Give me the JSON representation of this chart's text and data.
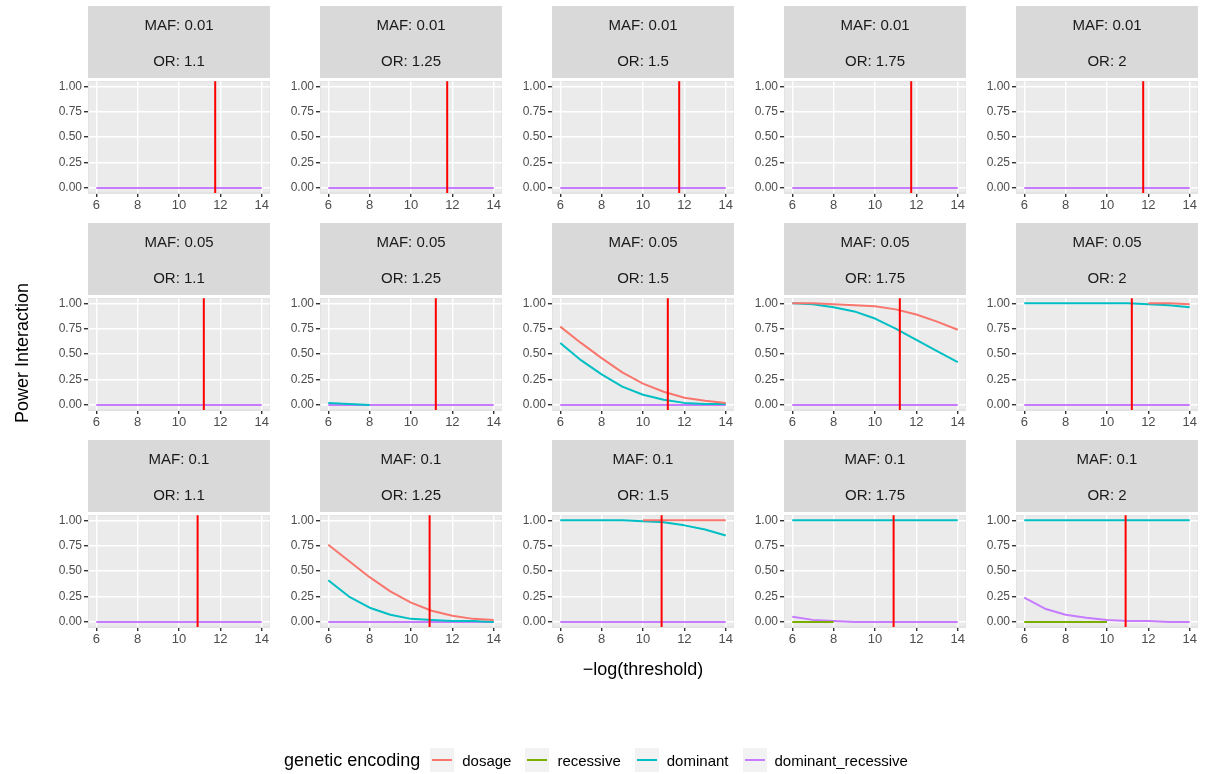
{
  "chart_data": [
    {
      "type": "line",
      "title": "MAF: 0.01",
      "subtitle": "OR: 1.1",
      "x": [
        6,
        7,
        8,
        9,
        10,
        11,
        12,
        13,
        14
      ],
      "xlim": [
        5.6,
        14.4
      ],
      "ylim": [
        -0.05,
        1.05
      ],
      "xticks": [
        6,
        8,
        10,
        12,
        14
      ],
      "yticks": [
        {
          "value": 0,
          "label": "0.00"
        },
        {
          "value": 0.25,
          "label": "0.25"
        },
        {
          "value": 0.5,
          "label": "0.50"
        },
        {
          "value": 0.75,
          "label": "0.75"
        },
        {
          "value": 1,
          "label": "1.00"
        }
      ],
      "grid": true,
      "ref_lines": [
        {
          "axis": "x",
          "value": 11.75,
          "color": "#ff0000"
        }
      ],
      "series": [
        {
          "color": "#f8766d",
          "values": [
            null,
            null,
            null,
            null,
            null,
            null,
            null,
            null,
            null
          ]
        },
        {
          "color": "#7cae00",
          "values": [
            null,
            null,
            null,
            null,
            null,
            null,
            null,
            null,
            null
          ]
        },
        {
          "color": "#00bfc4",
          "values": [
            null,
            null,
            null,
            null,
            null,
            null,
            null,
            null,
            null
          ]
        },
        {
          "color": "#c77cff",
          "values": [
            0,
            0,
            0,
            0,
            0,
            0,
            0,
            0,
            0
          ]
        }
      ]
    },
    {
      "type": "line",
      "title": "MAF: 0.01",
      "subtitle": "OR: 1.25",
      "x": [
        6,
        7,
        8,
        9,
        10,
        11,
        12,
        13,
        14
      ],
      "xlim": [
        5.6,
        14.4
      ],
      "ylim": [
        -0.05,
        1.05
      ],
      "xticks": [
        6,
        8,
        10,
        12,
        14
      ],
      "yticks": [
        {
          "value": 0,
          "label": "0.00"
        },
        {
          "value": 0.25,
          "label": "0.25"
        },
        {
          "value": 0.5,
          "label": "0.50"
        },
        {
          "value": 0.75,
          "label": "0.75"
        },
        {
          "value": 1,
          "label": "1.00"
        }
      ],
      "grid": true,
      "ref_lines": [
        {
          "axis": "x",
          "value": 11.75,
          "color": "#ff0000"
        }
      ],
      "series": [
        {
          "color": "#f8766d",
          "values": [
            null,
            null,
            null,
            null,
            null,
            null,
            null,
            null,
            null
          ]
        },
        {
          "color": "#7cae00",
          "values": [
            null,
            null,
            null,
            null,
            null,
            null,
            null,
            null,
            null
          ]
        },
        {
          "color": "#00bfc4",
          "values": [
            null,
            null,
            null,
            null,
            null,
            null,
            null,
            null,
            null
          ]
        },
        {
          "color": "#c77cff",
          "values": [
            0,
            0,
            0,
            0,
            0,
            0,
            0,
            0,
            0
          ]
        }
      ]
    },
    {
      "type": "line",
      "title": "MAF: 0.01",
      "subtitle": "OR: 1.5",
      "x": [
        6,
        7,
        8,
        9,
        10,
        11,
        12,
        13,
        14
      ],
      "xlim": [
        5.6,
        14.4
      ],
      "ylim": [
        -0.05,
        1.05
      ],
      "xticks": [
        6,
        8,
        10,
        12,
        14
      ],
      "yticks": [
        {
          "value": 0,
          "label": "0.00"
        },
        {
          "value": 0.25,
          "label": "0.25"
        },
        {
          "value": 0.5,
          "label": "0.50"
        },
        {
          "value": 0.75,
          "label": "0.75"
        },
        {
          "value": 1,
          "label": "1.00"
        }
      ],
      "grid": true,
      "ref_lines": [
        {
          "axis": "x",
          "value": 11.75,
          "color": "#ff0000"
        }
      ],
      "series": [
        {
          "color": "#f8766d",
          "values": [
            null,
            null,
            null,
            null,
            null,
            null,
            null,
            null,
            null
          ]
        },
        {
          "color": "#7cae00",
          "values": [
            null,
            null,
            null,
            null,
            null,
            null,
            null,
            null,
            null
          ]
        },
        {
          "color": "#00bfc4",
          "values": [
            null,
            null,
            null,
            null,
            null,
            null,
            null,
            null,
            null
          ]
        },
        {
          "color": "#c77cff",
          "values": [
            0,
            0,
            0,
            0,
            0,
            0,
            0,
            0,
            0
          ]
        }
      ]
    },
    {
      "type": "line",
      "title": "MAF: 0.01",
      "subtitle": "OR: 1.75",
      "x": [
        6,
        7,
        8,
        9,
        10,
        11,
        12,
        13,
        14
      ],
      "xlim": [
        5.6,
        14.4
      ],
      "ylim": [
        -0.05,
        1.05
      ],
      "xticks": [
        6,
        8,
        10,
        12,
        14
      ],
      "yticks": [
        {
          "value": 0,
          "label": "0.00"
        },
        {
          "value": 0.25,
          "label": "0.25"
        },
        {
          "value": 0.5,
          "label": "0.50"
        },
        {
          "value": 0.75,
          "label": "0.75"
        },
        {
          "value": 1,
          "label": "1.00"
        }
      ],
      "grid": true,
      "ref_lines": [
        {
          "axis": "x",
          "value": 11.75,
          "color": "#ff0000"
        }
      ],
      "series": [
        {
          "color": "#f8766d",
          "values": [
            null,
            null,
            null,
            null,
            null,
            null,
            null,
            null,
            null
          ]
        },
        {
          "color": "#7cae00",
          "values": [
            null,
            null,
            null,
            null,
            null,
            null,
            null,
            null,
            null
          ]
        },
        {
          "color": "#00bfc4",
          "values": [
            null,
            null,
            null,
            null,
            null,
            null,
            null,
            null,
            null
          ]
        },
        {
          "color": "#c77cff",
          "values": [
            0,
            0,
            0,
            0,
            0,
            0,
            0,
            0,
            0
          ]
        }
      ]
    },
    {
      "type": "line",
      "title": "MAF: 0.01",
      "subtitle": "OR: 2",
      "x": [
        6,
        7,
        8,
        9,
        10,
        11,
        12,
        13,
        14
      ],
      "xlim": [
        5.6,
        14.4
      ],
      "ylim": [
        -0.05,
        1.05
      ],
      "xticks": [
        6,
        8,
        10,
        12,
        14
      ],
      "yticks": [
        {
          "value": 0,
          "label": "0.00"
        },
        {
          "value": 0.25,
          "label": "0.25"
        },
        {
          "value": 0.5,
          "label": "0.50"
        },
        {
          "value": 0.75,
          "label": "0.75"
        },
        {
          "value": 1,
          "label": "1.00"
        }
      ],
      "grid": true,
      "ref_lines": [
        {
          "axis": "x",
          "value": 11.75,
          "color": "#ff0000"
        }
      ],
      "series": [
        {
          "color": "#f8766d",
          "values": [
            null,
            null,
            null,
            null,
            null,
            null,
            null,
            null,
            null
          ]
        },
        {
          "color": "#7cae00",
          "values": [
            null,
            null,
            null,
            null,
            null,
            null,
            null,
            null,
            null
          ]
        },
        {
          "color": "#00bfc4",
          "values": [
            null,
            null,
            null,
            null,
            null,
            null,
            null,
            null,
            null
          ]
        },
        {
          "color": "#c77cff",
          "values": [
            0,
            0,
            0,
            0,
            0,
            0,
            0,
            0,
            0
          ]
        }
      ]
    },
    {
      "type": "line",
      "title": "MAF: 0.05",
      "subtitle": "OR: 1.1",
      "ylabel": "Power Interaction",
      "x": [
        6,
        7,
        8,
        9,
        10,
        11,
        12,
        13,
        14
      ],
      "xlim": [
        5.6,
        14.4
      ],
      "ylim": [
        -0.05,
        1.05
      ],
      "xticks": [
        6,
        8,
        10,
        12,
        14
      ],
      "yticks": [
        {
          "value": 0,
          "label": "0.00"
        },
        {
          "value": 0.25,
          "label": "0.25"
        },
        {
          "value": 0.5,
          "label": "0.50"
        },
        {
          "value": 0.75,
          "label": "0.75"
        },
        {
          "value": 1,
          "label": "1.00"
        }
      ],
      "grid": true,
      "ref_lines": [
        {
          "axis": "x",
          "value": 11.2,
          "color": "#ff0000"
        }
      ],
      "series": [
        {
          "color": "#f8766d",
          "values": [
            null,
            null,
            null,
            null,
            null,
            null,
            null,
            null,
            null
          ]
        },
        {
          "color": "#7cae00",
          "values": [
            null,
            null,
            null,
            null,
            null,
            null,
            null,
            null,
            null
          ]
        },
        {
          "color": "#00bfc4",
          "values": [
            null,
            null,
            null,
            null,
            null,
            null,
            null,
            null,
            null
          ]
        },
        {
          "color": "#c77cff",
          "values": [
            0,
            0,
            0,
            0,
            0,
            0,
            0,
            0,
            0
          ]
        }
      ]
    },
    {
      "type": "line",
      "title": "MAF: 0.05",
      "subtitle": "OR: 1.25",
      "x": [
        6,
        7,
        8,
        9,
        10,
        11,
        12,
        13,
        14
      ],
      "xlim": [
        5.6,
        14.4
      ],
      "ylim": [
        -0.05,
        1.05
      ],
      "xticks": [
        6,
        8,
        10,
        12,
        14
      ],
      "yticks": [
        {
          "value": 0,
          "label": "0.00"
        },
        {
          "value": 0.25,
          "label": "0.25"
        },
        {
          "value": 0.5,
          "label": "0.50"
        },
        {
          "value": 0.75,
          "label": "0.75"
        },
        {
          "value": 1,
          "label": "1.00"
        }
      ],
      "grid": true,
      "ref_lines": [
        {
          "axis": "x",
          "value": 11.2,
          "color": "#ff0000"
        }
      ],
      "series": [
        {
          "color": "#f8766d",
          "values": [
            null,
            null,
            null,
            null,
            null,
            null,
            null,
            null,
            null
          ]
        },
        {
          "color": "#7cae00",
          "values": [
            null,
            null,
            null,
            null,
            null,
            null,
            null,
            null,
            null
          ]
        },
        {
          "color": "#00bfc4",
          "values": [
            0.02,
            0.01,
            0,
            null,
            null,
            null,
            null,
            null,
            null
          ]
        },
        {
          "color": "#c77cff",
          "values": [
            0,
            0,
            0,
            0,
            0,
            0,
            0,
            0,
            0
          ]
        }
      ]
    },
    {
      "type": "line",
      "title": "MAF: 0.05",
      "subtitle": "OR: 1.5",
      "x": [
        6,
        7,
        8,
        9,
        10,
        11,
        12,
        13,
        14
      ],
      "xlim": [
        5.6,
        14.4
      ],
      "ylim": [
        -0.05,
        1.05
      ],
      "xticks": [
        6,
        8,
        10,
        12,
        14
      ],
      "yticks": [
        {
          "value": 0,
          "label": "0.00"
        },
        {
          "value": 0.25,
          "label": "0.25"
        },
        {
          "value": 0.5,
          "label": "0.50"
        },
        {
          "value": 0.75,
          "label": "0.75"
        },
        {
          "value": 1,
          "label": "1.00"
        }
      ],
      "grid": true,
      "ref_lines": [
        {
          "axis": "x",
          "value": 11.2,
          "color": "#ff0000"
        }
      ],
      "series": [
        {
          "color": "#f8766d",
          "values": [
            0.77,
            0.61,
            0.46,
            0.32,
            0.21,
            0.13,
            0.07,
            0.04,
            0.02
          ]
        },
        {
          "color": "#7cae00",
          "values": [
            null,
            null,
            null,
            null,
            null,
            null,
            null,
            null,
            null
          ]
        },
        {
          "color": "#00bfc4",
          "values": [
            0.61,
            0.44,
            0.3,
            0.18,
            0.1,
            0.05,
            0.02,
            0.01,
            0.01
          ]
        },
        {
          "color": "#c77cff",
          "values": [
            0,
            0,
            0,
            0,
            0,
            0,
            0,
            0,
            0
          ]
        }
      ]
    },
    {
      "type": "line",
      "title": "MAF: 0.05",
      "subtitle": "OR: 1.75",
      "x": [
        6,
        7,
        8,
        9,
        10,
        11,
        12,
        13,
        14
      ],
      "xlim": [
        5.6,
        14.4
      ],
      "ylim": [
        -0.05,
        1.05
      ],
      "xticks": [
        6,
        8,
        10,
        12,
        14
      ],
      "yticks": [
        {
          "value": 0,
          "label": "0.00"
        },
        {
          "value": 0.25,
          "label": "0.25"
        },
        {
          "value": 0.5,
          "label": "0.50"
        },
        {
          "value": 0.75,
          "label": "0.75"
        },
        {
          "value": 1,
          "label": "1.00"
        }
      ],
      "grid": true,
      "ref_lines": [
        {
          "axis": "x",
          "value": 11.2,
          "color": "#ff0000"
        }
      ],
      "series": [
        {
          "color": "#f8766d",
          "values": [
            1,
            1,
            0.99,
            0.98,
            0.97,
            0.94,
            0.89,
            0.82,
            0.74
          ]
        },
        {
          "color": "#7cae00",
          "values": [
            null,
            null,
            null,
            null,
            null,
            null,
            null,
            null,
            null
          ]
        },
        {
          "color": "#00bfc4",
          "values": [
            1,
            0.99,
            0.96,
            0.92,
            0.85,
            0.75,
            0.64,
            0.53,
            0.42
          ]
        },
        {
          "color": "#c77cff",
          "values": [
            0,
            0,
            0,
            0,
            0,
            0,
            0,
            0,
            0
          ]
        }
      ]
    },
    {
      "type": "line",
      "title": "MAF: 0.05",
      "subtitle": "OR: 2",
      "x": [
        6,
        7,
        8,
        9,
        10,
        11,
        12,
        13,
        14
      ],
      "xlim": [
        5.6,
        14.4
      ],
      "ylim": [
        -0.05,
        1.05
      ],
      "xticks": [
        6,
        8,
        10,
        12,
        14
      ],
      "yticks": [
        {
          "value": 0,
          "label": "0.00"
        },
        {
          "value": 0.25,
          "label": "0.25"
        },
        {
          "value": 0.5,
          "label": "0.50"
        },
        {
          "value": 0.75,
          "label": "0.75"
        },
        {
          "value": 1,
          "label": "1.00"
        }
      ],
      "grid": true,
      "ref_lines": [
        {
          "axis": "x",
          "value": 11.2,
          "color": "#ff0000"
        }
      ],
      "series": [
        {
          "color": "#f8766d",
          "values": [
            null,
            null,
            null,
            null,
            null,
            null,
            1,
            1,
            0.99
          ]
        },
        {
          "color": "#7cae00",
          "values": [
            null,
            null,
            null,
            null,
            null,
            null,
            null,
            null,
            null
          ]
        },
        {
          "color": "#00bfc4",
          "values": [
            1,
            1,
            1,
            1,
            1,
            1,
            0.99,
            0.98,
            0.96
          ]
        },
        {
          "color": "#c77cff",
          "values": [
            0,
            0,
            0,
            0,
            0,
            0,
            0,
            0,
            0
          ]
        }
      ]
    },
    {
      "type": "line",
      "title": "MAF: 0.1",
      "subtitle": "OR: 1.1",
      "x": [
        6,
        7,
        8,
        9,
        10,
        11,
        12,
        13,
        14
      ],
      "xlim": [
        5.6,
        14.4
      ],
      "ylim": [
        -0.05,
        1.05
      ],
      "xticks": [
        6,
        8,
        10,
        12,
        14
      ],
      "yticks": [
        {
          "value": 0,
          "label": "0.00"
        },
        {
          "value": 0.25,
          "label": "0.25"
        },
        {
          "value": 0.5,
          "label": "0.50"
        },
        {
          "value": 0.75,
          "label": "0.75"
        },
        {
          "value": 1,
          "label": "1.00"
        }
      ],
      "grid": true,
      "ref_lines": [
        {
          "axis": "x",
          "value": 10.9,
          "color": "#ff0000"
        }
      ],
      "series": [
        {
          "color": "#f8766d",
          "values": [
            null,
            null,
            null,
            null,
            null,
            null,
            null,
            null,
            null
          ]
        },
        {
          "color": "#7cae00",
          "values": [
            null,
            null,
            null,
            null,
            null,
            null,
            null,
            null,
            null
          ]
        },
        {
          "color": "#00bfc4",
          "values": [
            null,
            null,
            null,
            null,
            null,
            null,
            null,
            null,
            null
          ]
        },
        {
          "color": "#c77cff",
          "values": [
            0,
            0,
            0,
            0,
            0,
            0,
            0,
            0,
            0
          ]
        }
      ]
    },
    {
      "type": "line",
      "title": "MAF: 0.1",
      "subtitle": "OR: 1.25",
      "x": [
        6,
        7,
        8,
        9,
        10,
        11,
        12,
        13,
        14
      ],
      "xlim": [
        5.6,
        14.4
      ],
      "ylim": [
        -0.05,
        1.05
      ],
      "xticks": [
        6,
        8,
        10,
        12,
        14
      ],
      "yticks": [
        {
          "value": 0,
          "label": "0.00"
        },
        {
          "value": 0.25,
          "label": "0.25"
        },
        {
          "value": 0.5,
          "label": "0.50"
        },
        {
          "value": 0.75,
          "label": "0.75"
        },
        {
          "value": 1,
          "label": "1.00"
        }
      ],
      "grid": true,
      "ref_lines": [
        {
          "axis": "x",
          "value": 10.9,
          "color": "#ff0000"
        }
      ],
      "series": [
        {
          "color": "#f8766d",
          "values": [
            0.76,
            0.6,
            0.44,
            0.3,
            0.19,
            0.11,
            0.06,
            0.03,
            0.02
          ]
        },
        {
          "color": "#7cae00",
          "values": [
            null,
            null,
            null,
            null,
            null,
            null,
            null,
            null,
            null
          ]
        },
        {
          "color": "#00bfc4",
          "values": [
            0.41,
            0.25,
            0.14,
            0.07,
            0.03,
            0.02,
            0.01,
            0.01,
            0
          ]
        },
        {
          "color": "#c77cff",
          "values": [
            0,
            0,
            0,
            0,
            0,
            0,
            0,
            0,
            0
          ]
        }
      ]
    },
    {
      "type": "line",
      "title": "MAF: 0.1",
      "subtitle": "OR: 1.5",
      "xlabel": "−log(threshold)",
      "legend": "bottom",
      "legend_title": "genetic encoding",
      "x": [
        6,
        7,
        8,
        9,
        10,
        11,
        12,
        13,
        14
      ],
      "xlim": [
        5.6,
        14.4
      ],
      "ylim": [
        -0.05,
        1.05
      ],
      "xticks": [
        6,
        8,
        10,
        12,
        14
      ],
      "yticks": [
        {
          "value": 0,
          "label": "0.00"
        },
        {
          "value": 0.25,
          "label": "0.25"
        },
        {
          "value": 0.5,
          "label": "0.50"
        },
        {
          "value": 0.75,
          "label": "0.75"
        },
        {
          "value": 1,
          "label": "1.00"
        }
      ],
      "grid": true,
      "ref_lines": [
        {
          "axis": "x",
          "value": 10.9,
          "color": "#ff0000"
        }
      ],
      "series": [
        {
          "name": "dosage",
          "color": "#f8766d",
          "values": [
            null,
            null,
            null,
            null,
            1,
            1,
            1,
            1,
            1
          ]
        },
        {
          "name": "recessive",
          "color": "#7cae00",
          "values": [
            null,
            null,
            null,
            null,
            null,
            null,
            null,
            null,
            null
          ]
        },
        {
          "name": "dominant",
          "color": "#00bfc4",
          "values": [
            1,
            1,
            1,
            1,
            0.99,
            0.98,
            0.95,
            0.91,
            0.85
          ]
        },
        {
          "name": "dominant_recessive",
          "color": "#c77cff",
          "values": [
            0,
            0,
            0,
            0,
            0,
            0,
            0,
            0,
            0
          ]
        }
      ]
    },
    {
      "type": "line",
      "title": "MAF: 0.1",
      "subtitle": "OR: 1.75",
      "x": [
        6,
        7,
        8,
        9,
        10,
        11,
        12,
        13,
        14
      ],
      "xlim": [
        5.6,
        14.4
      ],
      "ylim": [
        -0.05,
        1.05
      ],
      "xticks": [
        6,
        8,
        10,
        12,
        14
      ],
      "yticks": [
        {
          "value": 0,
          "label": "0.00"
        },
        {
          "value": 0.25,
          "label": "0.25"
        },
        {
          "value": 0.5,
          "label": "0.50"
        },
        {
          "value": 0.75,
          "label": "0.75"
        },
        {
          "value": 1,
          "label": "1.00"
        }
      ],
      "grid": true,
      "ref_lines": [
        {
          "axis": "x",
          "value": 10.9,
          "color": "#ff0000"
        }
      ],
      "series": [
        {
          "color": "#f8766d",
          "values": [
            null,
            null,
            null,
            null,
            null,
            null,
            null,
            null,
            null
          ]
        },
        {
          "color": "#7cae00",
          "values": [
            0,
            0,
            0,
            null,
            null,
            null,
            null,
            null,
            null
          ]
        },
        {
          "color": "#00bfc4",
          "values": [
            1,
            1,
            1,
            1,
            1,
            1,
            1,
            1,
            1
          ]
        },
        {
          "color": "#c77cff",
          "values": [
            0.05,
            0.02,
            0.01,
            0,
            0,
            0,
            0,
            0,
            0
          ]
        }
      ]
    },
    {
      "type": "line",
      "title": "MAF: 0.1",
      "subtitle": "OR: 2",
      "x": [
        6,
        7,
        8,
        9,
        10,
        11,
        12,
        13,
        14
      ],
      "xlim": [
        5.6,
        14.4
      ],
      "ylim": [
        -0.05,
        1.05
      ],
      "xticks": [
        6,
        8,
        10,
        12,
        14
      ],
      "yticks": [
        {
          "value": 0,
          "label": "0.00"
        },
        {
          "value": 0.25,
          "label": "0.25"
        },
        {
          "value": 0.5,
          "label": "0.50"
        },
        {
          "value": 0.75,
          "label": "0.75"
        },
        {
          "value": 1,
          "label": "1.00"
        }
      ],
      "grid": true,
      "ref_lines": [
        {
          "axis": "x",
          "value": 10.9,
          "color": "#ff0000"
        }
      ],
      "series": [
        {
          "color": "#f8766d",
          "values": [
            null,
            null,
            null,
            null,
            null,
            null,
            null,
            null,
            null
          ]
        },
        {
          "color": "#7cae00",
          "values": [
            0,
            0,
            0,
            0,
            0,
            null,
            null,
            null,
            null
          ]
        },
        {
          "color": "#00bfc4",
          "values": [
            1,
            1,
            1,
            1,
            1,
            1,
            1,
            1,
            1
          ]
        },
        {
          "color": "#c77cff",
          "values": [
            0.24,
            0.13,
            0.07,
            0.04,
            0.02,
            0.01,
            0.01,
            0,
            0
          ]
        }
      ]
    }
  ]
}
